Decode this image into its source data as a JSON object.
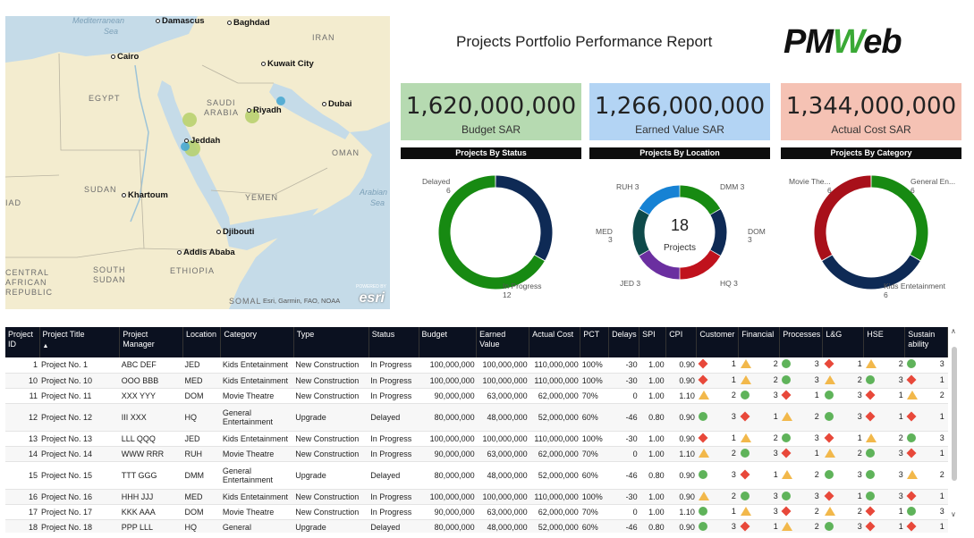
{
  "report_title": "Projects Portfolio Performance Report",
  "logo": {
    "left": "PM",
    "mid": "W",
    "right": "eb",
    "icon": "pmweb-logo"
  },
  "map": {
    "countries": [
      "IRAN",
      "EGYPT",
      "SAUDI",
      "ARABIA",
      "OMAN",
      "SUDAN",
      "YEMEN",
      "ETHIOPIA",
      "SOUTH",
      "SUDAN",
      "CENTRAL",
      "AFRICAN",
      "REPUBLIC",
      "SOMAL",
      "IAD"
    ],
    "seas": [
      "Mediterranean",
      "Sea",
      "Arabian",
      "Sea"
    ],
    "cities": [
      "Damascus",
      "Baghdad",
      "Cairo",
      "Kuwait City",
      "Riyadh",
      "Dubai",
      "Jeddah",
      "Khartoum",
      "Djibouti",
      "Addis Ababa"
    ],
    "attribution": "Esri, Garmin, FAO, NOAA",
    "powered": "POWERED BY",
    "esri": "esri",
    "colors": {
      "land": "#f3eccf",
      "water": "#c5dbe8",
      "marker_green": "#b5d06a",
      "marker_blue": "#4aa9d2"
    }
  },
  "kpis": [
    {
      "value": "1,620,000,000",
      "label": "Budget SAR",
      "color": "#b6dab1"
    },
    {
      "value": "1,266,000,000",
      "label": "Earned Value SAR",
      "color": "#b3d4f4"
    },
    {
      "value": "1,344,000,000",
      "label": "Actual Cost SAR",
      "color": "#f5c2b4"
    }
  ],
  "donuts": [
    {
      "title": "Projects By Status",
      "slices": [
        {
          "name": "Delayed",
          "value": 6,
          "color": "#0e2a55"
        },
        {
          "name": "In Progress",
          "value": 12,
          "color": "#178a12"
        }
      ],
      "labels": {
        "Delayed": "Delayed",
        "Delayed_v": "6",
        "InProgress": "In Progress",
        "InProgress_v": "12"
      }
    },
    {
      "title": "Projects By Location",
      "center_value": "18",
      "center_label": "Projects",
      "slices": [
        {
          "name": "DMM",
          "value": 3,
          "color": "#178a12"
        },
        {
          "name": "DOM",
          "value": 3,
          "color": "#0e2a55"
        },
        {
          "name": "HQ",
          "value": 3,
          "color": "#c0121d"
        },
        {
          "name": "JED",
          "value": 3,
          "color": "#6b2fa0"
        },
        {
          "name": "MED",
          "value": 3,
          "color": "#0e4a4a"
        },
        {
          "name": "RUH",
          "value": 3,
          "color": "#1682d4"
        }
      ],
      "labels": {
        "DMM": "DMM 3",
        "DOM": "DOM",
        "DOM_v": "3",
        "HQ": "HQ 3",
        "JED": "JED 3",
        "MED": "MED",
        "MED_v": "3",
        "RUH": "RUH 3"
      }
    },
    {
      "title": "Projects By Category",
      "slices": [
        {
          "name": "General En...",
          "value": 6,
          "color": "#178a12"
        },
        {
          "name": "Kids Entetainment",
          "value": 6,
          "color": "#0e2a55"
        },
        {
          "name": "Movie The...",
          "value": 6,
          "color": "#a8101a"
        }
      ],
      "labels": {
        "General": "General En...",
        "General_v": "6",
        "Kids": "Kids Entetainment",
        "Kids_v": "6",
        "Movie": "Movie The...",
        "Movie_v": "6"
      }
    }
  ],
  "table": {
    "headers": [
      "Project ID",
      "Project Title",
      "Project Manager",
      "Location",
      "Category",
      "Type",
      "Status",
      "Budget",
      "Earned Value",
      "Actual Cost",
      "PCT",
      "Delays",
      "SPI",
      "CPI",
      "Customer",
      "Financial",
      "Processes",
      "L&G",
      "HSE",
      "Sustain ability"
    ],
    "rows": [
      {
        "id": "1",
        "title": "Project No. 1",
        "pm": "ABC DEF",
        "loc": "JED",
        "cat": "Kids Entetainment",
        "type": "New Construction",
        "status": "In Progress",
        "budget": "100,000,000",
        "ev": "100,000,000",
        "ac": "110,000,000",
        "pct": "100%",
        "delays": "-30",
        "spi": "1.00",
        "cpi": "0.90",
        "ind": [
          [
            "diamond",
            "1"
          ],
          [
            "triangle",
            "2"
          ],
          [
            "circle",
            "3"
          ],
          [
            "diamond",
            "1"
          ],
          [
            "triangle",
            "2"
          ],
          [
            "circle",
            "3"
          ]
        ],
        "tall": false
      },
      {
        "id": "10",
        "title": "Project No. 10",
        "pm": "OOO BBB",
        "loc": "MED",
        "cat": "Kids Entetainment",
        "type": "New Construction",
        "status": "In Progress",
        "budget": "100,000,000",
        "ev": "100,000,000",
        "ac": "110,000,000",
        "pct": "100%",
        "delays": "-30",
        "spi": "1.00",
        "cpi": "0.90",
        "ind": [
          [
            "diamond",
            "1"
          ],
          [
            "triangle",
            "2"
          ],
          [
            "circle",
            "3"
          ],
          [
            "triangle",
            "2"
          ],
          [
            "circle",
            "3"
          ],
          [
            "diamond",
            "1"
          ]
        ],
        "tall": false
      },
      {
        "id": "11",
        "title": "Project No. 11",
        "pm": "XXX YYY",
        "loc": "DOM",
        "cat": "Movie Theatre",
        "type": "New Construction",
        "status": "In Progress",
        "budget": "90,000,000",
        "ev": "63,000,000",
        "ac": "62,000,000",
        "pct": "70%",
        "delays": "0",
        "spi": "1.00",
        "cpi": "1.10",
        "ind": [
          [
            "triangle",
            "2"
          ],
          [
            "circle",
            "3"
          ],
          [
            "diamond",
            "1"
          ],
          [
            "circle",
            "3"
          ],
          [
            "diamond",
            "1"
          ],
          [
            "triangle",
            "2"
          ]
        ],
        "tall": false
      },
      {
        "id": "12",
        "title": "Project No. 12",
        "pm": "III XXX",
        "loc": "HQ",
        "cat": "General Entertainment",
        "type": "Upgrade",
        "status": "Delayed",
        "budget": "80,000,000",
        "ev": "48,000,000",
        "ac": "52,000,000",
        "pct": "60%",
        "delays": "-46",
        "spi": "0.80",
        "cpi": "0.90",
        "ind": [
          [
            "circle",
            "3"
          ],
          [
            "diamond",
            "1"
          ],
          [
            "triangle",
            "2"
          ],
          [
            "circle",
            "3"
          ],
          [
            "diamond",
            "1"
          ],
          [
            "diamond",
            "1"
          ]
        ],
        "tall": true
      },
      {
        "id": "13",
        "title": "Project No. 13",
        "pm": "LLL QQQ",
        "loc": "JED",
        "cat": "Kids Entetainment",
        "type": "New Construction",
        "status": "In Progress",
        "budget": "100,000,000",
        "ev": "100,000,000",
        "ac": "110,000,000",
        "pct": "100%",
        "delays": "-30",
        "spi": "1.00",
        "cpi": "0.90",
        "ind": [
          [
            "diamond",
            "1"
          ],
          [
            "triangle",
            "2"
          ],
          [
            "circle",
            "3"
          ],
          [
            "diamond",
            "1"
          ],
          [
            "triangle",
            "2"
          ],
          [
            "circle",
            "3"
          ]
        ],
        "tall": false
      },
      {
        "id": "14",
        "title": "Project No. 14",
        "pm": "WWW RRR",
        "loc": "RUH",
        "cat": "Movie Theatre",
        "type": "New Construction",
        "status": "In Progress",
        "budget": "90,000,000",
        "ev": "63,000,000",
        "ac": "62,000,000",
        "pct": "70%",
        "delays": "0",
        "spi": "1.00",
        "cpi": "1.10",
        "ind": [
          [
            "triangle",
            "2"
          ],
          [
            "circle",
            "3"
          ],
          [
            "diamond",
            "1"
          ],
          [
            "triangle",
            "2"
          ],
          [
            "circle",
            "3"
          ],
          [
            "diamond",
            "1"
          ]
        ],
        "tall": false
      },
      {
        "id": "15",
        "title": "Project No. 15",
        "pm": "TTT GGG",
        "loc": "DMM",
        "cat": "General Entertainment",
        "type": "Upgrade",
        "status": "Delayed",
        "budget": "80,000,000",
        "ev": "48,000,000",
        "ac": "52,000,000",
        "pct": "60%",
        "delays": "-46",
        "spi": "0.80",
        "cpi": "0.90",
        "ind": [
          [
            "circle",
            "3"
          ],
          [
            "diamond",
            "1"
          ],
          [
            "triangle",
            "2"
          ],
          [
            "circle",
            "3"
          ],
          [
            "circle",
            "3"
          ],
          [
            "triangle",
            "2"
          ]
        ],
        "tall": true
      },
      {
        "id": "16",
        "title": "Project No. 16",
        "pm": "HHH JJJ",
        "loc": "MED",
        "cat": "Kids Entetainment",
        "type": "New Construction",
        "status": "In Progress",
        "budget": "100,000,000",
        "ev": "100,000,000",
        "ac": "110,000,000",
        "pct": "100%",
        "delays": "-30",
        "spi": "1.00",
        "cpi": "0.90",
        "ind": [
          [
            "triangle",
            "2"
          ],
          [
            "circle",
            "3"
          ],
          [
            "circle",
            "3"
          ],
          [
            "diamond",
            "1"
          ],
          [
            "circle",
            "3"
          ],
          [
            "diamond",
            "1"
          ]
        ],
        "tall": false
      },
      {
        "id": "17",
        "title": "Project No. 17",
        "pm": "KKK AAA",
        "loc": "DOM",
        "cat": "Movie Theatre",
        "type": "New Construction",
        "status": "In Progress",
        "budget": "90,000,000",
        "ev": "63,000,000",
        "ac": "62,000,000",
        "pct": "70%",
        "delays": "0",
        "spi": "1.00",
        "cpi": "1.10",
        "ind": [
          [
            "circle",
            "1"
          ],
          [
            "triangle",
            "3"
          ],
          [
            "diamond",
            "2"
          ],
          [
            "triangle",
            "2"
          ],
          [
            "diamond",
            "1"
          ],
          [
            "circle",
            "3"
          ]
        ],
        "tall": false
      },
      {
        "id": "18",
        "title": "Project No. 18",
        "pm": "PPP LLL",
        "loc": "HQ",
        "cat": "General",
        "type": "Upgrade",
        "status": "Delayed",
        "budget": "80,000,000",
        "ev": "48,000,000",
        "ac": "52,000,000",
        "pct": "60%",
        "delays": "-46",
        "spi": "0.80",
        "cpi": "0.90",
        "ind": [
          [
            "circle",
            "3"
          ],
          [
            "diamond",
            "1"
          ],
          [
            "triangle",
            "2"
          ],
          [
            "circle",
            "3"
          ],
          [
            "diamond",
            "1"
          ],
          [
            "diamond",
            "1"
          ]
        ],
        "tall": false
      }
    ]
  }
}
